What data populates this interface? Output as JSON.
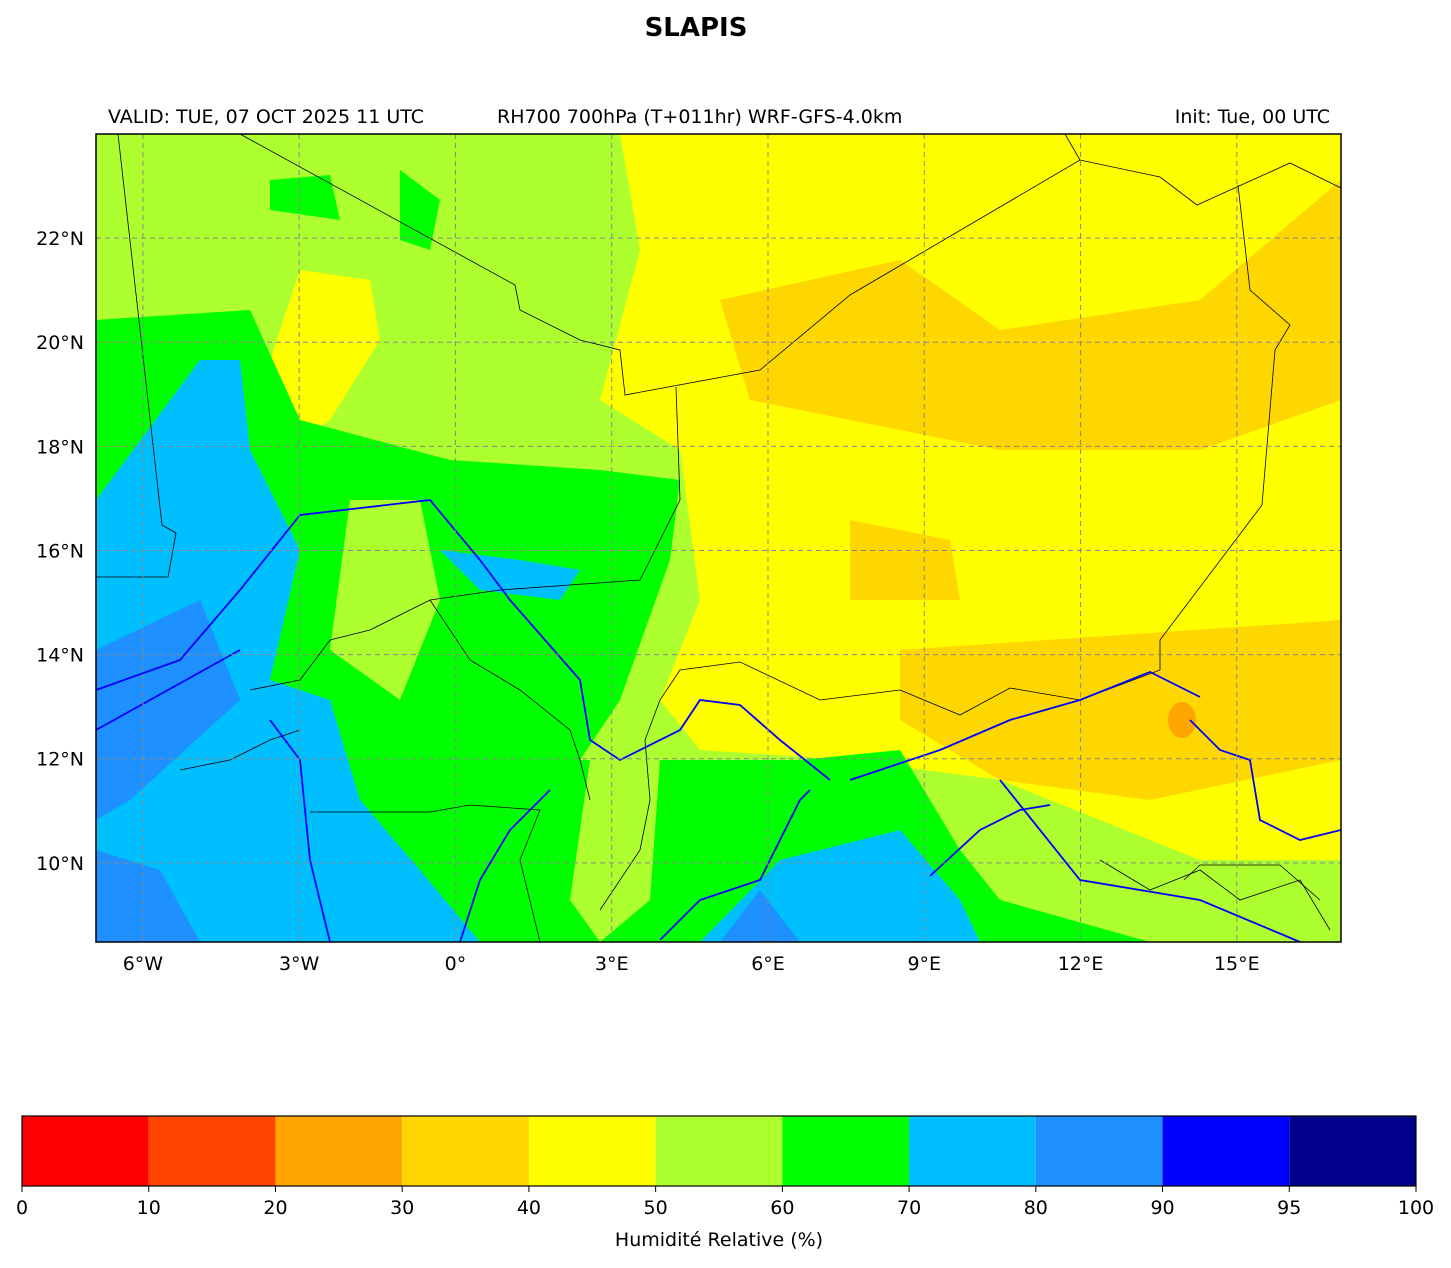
{
  "header": {
    "title": "SLAPIS",
    "valid": "VALID: TUE, 07 OCT 2025 11 UTC",
    "product": "RH700 700hPa (T+011hr) WRF-GFS-4.0km",
    "init": "Init: Tue, 00 UTC"
  },
  "map": {
    "xlim": [
      -6.9,
      17.0
    ],
    "ylim": [
      8.48,
      24.0
    ],
    "xticks": [
      {
        "value": -6,
        "label": "6°W"
      },
      {
        "value": -3,
        "label": "3°W"
      },
      {
        "value": 0,
        "label": "0°"
      },
      {
        "value": 3,
        "label": "3°E"
      },
      {
        "value": 6,
        "label": "6°E"
      },
      {
        "value": 9,
        "label": "9°E"
      },
      {
        "value": 12,
        "label": "12°E"
      },
      {
        "value": 15,
        "label": "15°E"
      }
    ],
    "yticks": [
      {
        "value": 10,
        "label": "10°N"
      },
      {
        "value": 12,
        "label": "12°N"
      },
      {
        "value": 14,
        "label": "14°N"
      },
      {
        "value": 16,
        "label": "16°N"
      },
      {
        "value": 18,
        "label": "18°N"
      },
      {
        "value": 20,
        "label": "20°N"
      },
      {
        "value": 22,
        "label": "22°N"
      }
    ],
    "grid": true
  },
  "colorbar": {
    "label": "Humidité Relative (%)",
    "ticks": [
      0,
      10,
      20,
      30,
      40,
      50,
      60,
      70,
      80,
      90,
      95,
      100
    ],
    "colors": [
      "#ff0000",
      "#ff4500",
      "#ffa500",
      "#ffd700",
      "#ffff00",
      "#adff2f",
      "#00ff00",
      "#00bfff",
      "#1e90ff",
      "#0000ff",
      "#00008b"
    ]
  }
}
